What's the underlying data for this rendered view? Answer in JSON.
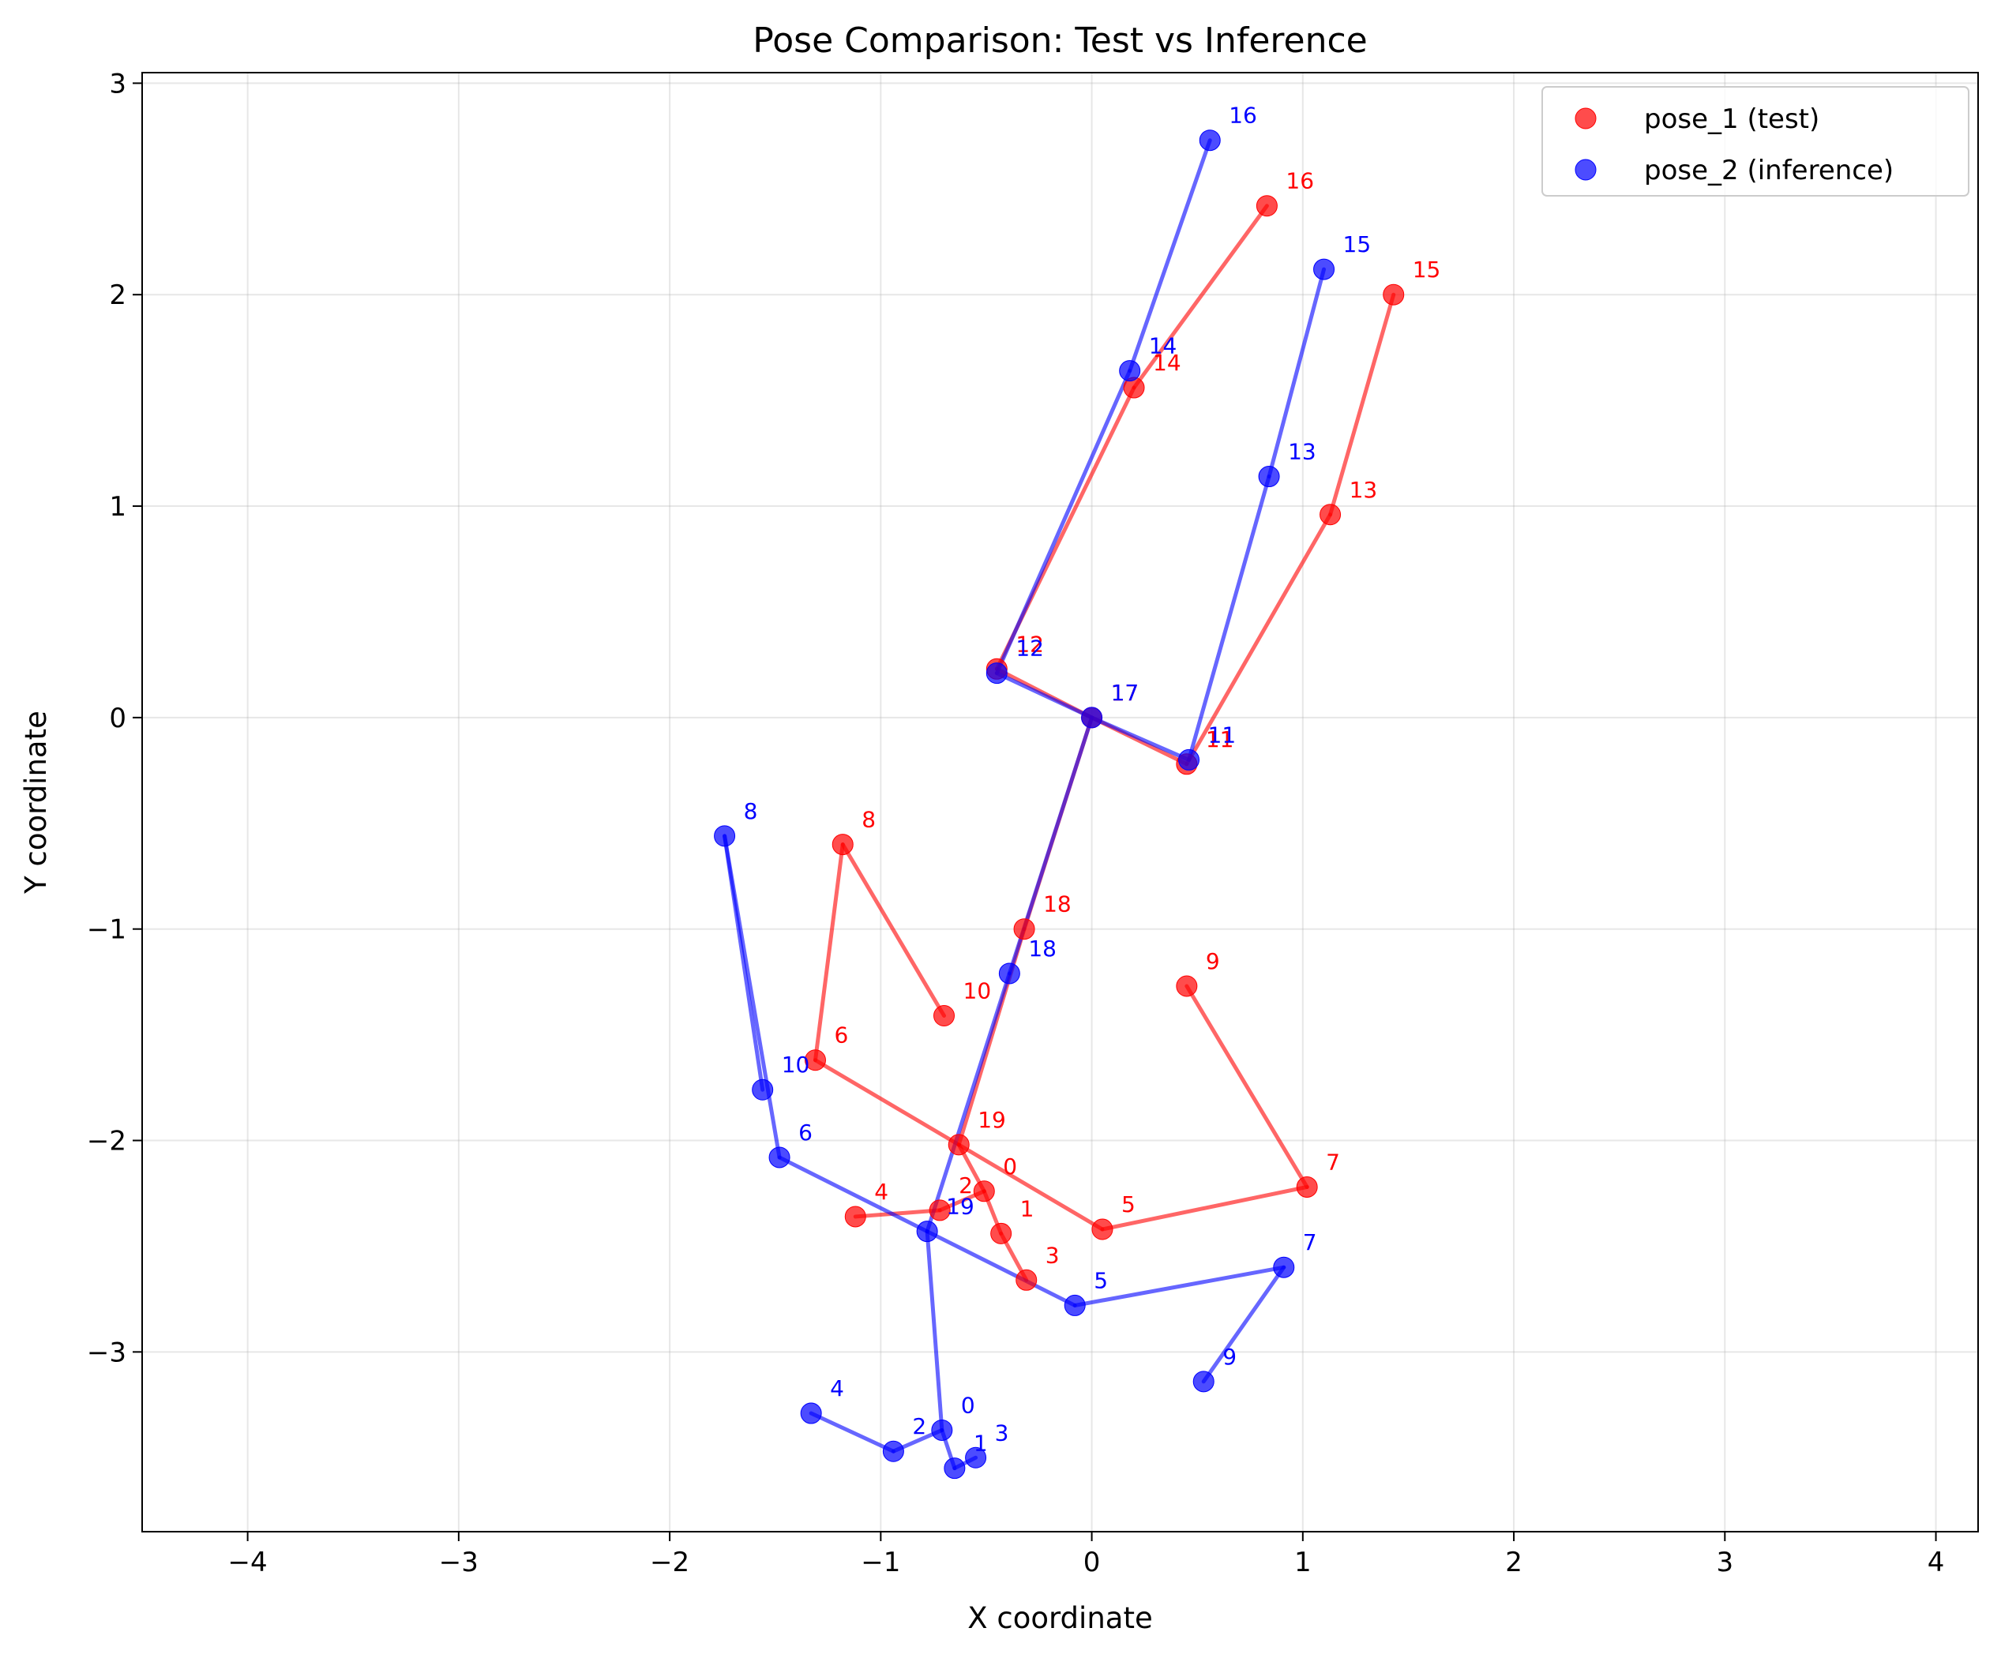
{
  "chart_data": {
    "type": "scatter",
    "title": "Pose Comparison: Test vs Inference",
    "xlabel": "X coordinate",
    "ylabel": "Y coordinate",
    "xlim": [
      -4.5,
      4.2
    ],
    "ylim": [
      -3.85,
      3.05
    ],
    "xticks": [
      -4,
      -3,
      -2,
      -1,
      0,
      1,
      2,
      3,
      4
    ],
    "yticks": [
      -3,
      -2,
      -1,
      0,
      1,
      2,
      3
    ],
    "grid": true,
    "legend_position": "top-right",
    "bones": [
      [
        17,
        11
      ],
      [
        17,
        12
      ],
      [
        11,
        13
      ],
      [
        13,
        15
      ],
      [
        12,
        14
      ],
      [
        14,
        16
      ],
      [
        17,
        18
      ],
      [
        18,
        19
      ],
      [
        19,
        0
      ],
      [
        0,
        1
      ],
      [
        1,
        3
      ],
      [
        0,
        2
      ],
      [
        2,
        4
      ],
      [
        19,
        5
      ],
      [
        5,
        7
      ],
      [
        7,
        9
      ],
      [
        19,
        6
      ],
      [
        6,
        8
      ],
      [
        8,
        10
      ]
    ],
    "series": [
      {
        "name": "pose_1 (test)",
        "color": "#ff0000",
        "points": [
          {
            "id": "0",
            "x": -0.51,
            "y": -2.24
          },
          {
            "id": "1",
            "x": -0.43,
            "y": -2.44
          },
          {
            "id": "2",
            "x": -0.72,
            "y": -2.33
          },
          {
            "id": "3",
            "x": -0.31,
            "y": -2.66
          },
          {
            "id": "4",
            "x": -1.12,
            "y": -2.36
          },
          {
            "id": "5",
            "x": 0.05,
            "y": -2.42
          },
          {
            "id": "6",
            "x": -1.31,
            "y": -1.62
          },
          {
            "id": "7",
            "x": 1.02,
            "y": -2.22
          },
          {
            "id": "8",
            "x": -1.18,
            "y": -0.6
          },
          {
            "id": "9",
            "x": 0.45,
            "y": -1.27
          },
          {
            "id": "10",
            "x": -0.7,
            "y": -1.41
          },
          {
            "id": "11",
            "x": 0.45,
            "y": -0.22
          },
          {
            "id": "12",
            "x": -0.45,
            "y": 0.23
          },
          {
            "id": "13",
            "x": 1.13,
            "y": 0.96
          },
          {
            "id": "14",
            "x": 0.2,
            "y": 1.56
          },
          {
            "id": "15",
            "x": 1.43,
            "y": 2.0
          },
          {
            "id": "16",
            "x": 0.83,
            "y": 2.42
          },
          {
            "id": "17",
            "x": 0.0,
            "y": 0.0
          },
          {
            "id": "18",
            "x": -0.32,
            "y": -1.0
          },
          {
            "id": "19",
            "x": -0.63,
            "y": -2.02
          }
        ]
      },
      {
        "name": "pose_2 (inference)",
        "color": "#0000ff",
        "points": [
          {
            "id": "0",
            "x": -0.71,
            "y": -3.37
          },
          {
            "id": "1",
            "x": -0.65,
            "y": -3.55
          },
          {
            "id": "2",
            "x": -0.94,
            "y": -3.47
          },
          {
            "id": "3",
            "x": -0.55,
            "y": -3.5
          },
          {
            "id": "4",
            "x": -1.33,
            "y": -3.29
          },
          {
            "id": "5",
            "x": -0.08,
            "y": -2.78
          },
          {
            "id": "6",
            "x": -1.48,
            "y": -2.08
          },
          {
            "id": "7",
            "x": 0.91,
            "y": -2.6
          },
          {
            "id": "8",
            "x": -1.74,
            "y": -0.56
          },
          {
            "id": "9",
            "x": 0.53,
            "y": -3.14
          },
          {
            "id": "10",
            "x": -1.56,
            "y": -1.76
          },
          {
            "id": "11",
            "x": 0.46,
            "y": -0.2
          },
          {
            "id": "12",
            "x": -0.45,
            "y": 0.21
          },
          {
            "id": "13",
            "x": 0.84,
            "y": 1.14
          },
          {
            "id": "14",
            "x": 0.18,
            "y": 1.64
          },
          {
            "id": "15",
            "x": 1.1,
            "y": 2.12
          },
          {
            "id": "16",
            "x": 0.56,
            "y": 2.73
          },
          {
            "id": "17",
            "x": 0.0,
            "y": 0.0
          },
          {
            "id": "18",
            "x": -0.39,
            "y": -1.21
          },
          {
            "id": "19",
            "x": -0.78,
            "y": -2.43
          }
        ]
      }
    ]
  }
}
